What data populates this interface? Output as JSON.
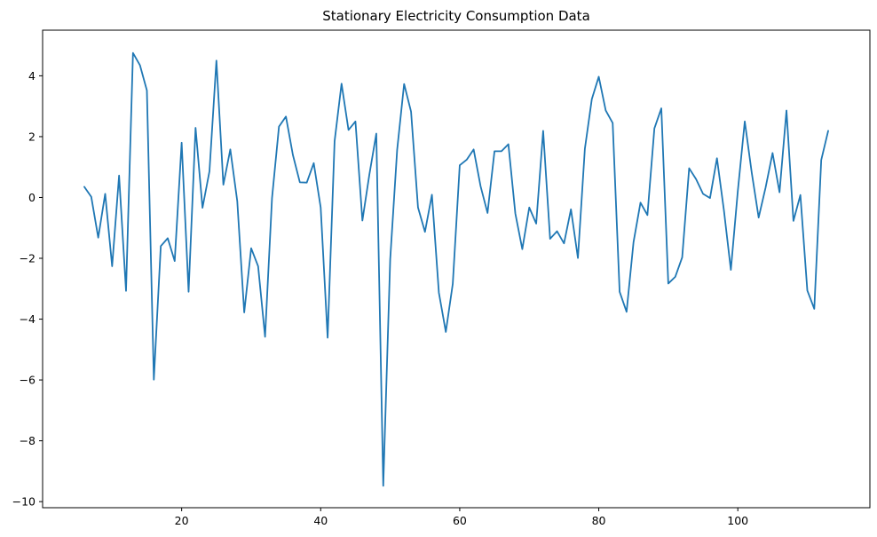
{
  "chart_data": {
    "type": "line",
    "title": "Stationary Electricity Consumption Data",
    "xlabel": "",
    "ylabel": "",
    "xlim": [
      -0.0,
      119.0
    ],
    "ylim": [
      -10.2,
      5.5
    ],
    "x_ticks": [
      20,
      40,
      60,
      80,
      100
    ],
    "x_tick_labels": [
      "20",
      "40",
      "60",
      "80",
      "100"
    ],
    "y_ticks": [
      -10,
      -8,
      -6,
      -4,
      -2,
      0,
      2,
      4
    ],
    "y_tick_labels": [
      "−10",
      "−8",
      "−6",
      "−4",
      "−2",
      "0",
      "2",
      "4"
    ],
    "grid": false,
    "colors": {
      "line": "#1f77b4"
    },
    "series": [
      {
        "x": [
          6,
          7,
          8,
          9,
          10,
          11,
          12,
          13,
          14,
          15,
          16,
          17,
          18,
          19,
          20,
          21,
          22,
          23,
          24,
          25,
          26,
          27,
          28,
          29,
          30,
          31,
          32,
          33,
          34,
          35,
          36,
          37,
          38,
          39,
          40,
          41,
          42,
          43,
          44,
          45,
          46,
          47,
          48,
          49,
          50,
          51,
          52,
          53,
          54,
          55,
          56,
          57,
          58,
          59,
          60,
          61,
          62,
          63,
          64,
          65,
          66,
          67,
          68,
          69,
          70,
          71,
          72,
          73,
          74,
          75,
          76,
          77,
          78,
          79,
          80,
          81,
          82,
          83,
          84,
          85,
          86,
          87,
          88,
          89,
          90,
          91,
          92,
          93,
          94,
          95,
          96,
          97,
          98,
          99,
          100,
          101,
          102,
          103,
          104,
          105,
          106,
          107,
          108,
          109,
          110,
          111,
          112,
          113
        ],
        "values": [
          0.35,
          0.02,
          -1.32,
          0.12,
          -2.26,
          0.72,
          -3.07,
          4.75,
          4.35,
          3.52,
          -5.99,
          -1.6,
          -1.34,
          -2.09,
          1.8,
          -3.1,
          2.29,
          -0.34,
          0.86,
          4.5,
          0.42,
          1.58,
          -0.12,
          -3.78,
          -1.67,
          -2.26,
          -4.58,
          -0.02,
          2.33,
          2.66,
          1.4,
          0.5,
          0.49,
          1.13,
          -0.33,
          -4.61,
          1.85,
          3.74,
          2.22,
          2.5,
          -0.76,
          0.75,
          2.1,
          -9.48,
          -2.03,
          1.57,
          3.73,
          2.82,
          -0.33,
          -1.13,
          0.09,
          -3.13,
          -4.42,
          -2.84,
          1.06,
          1.24,
          1.58,
          0.37,
          -0.51,
          1.52,
          1.52,
          1.75,
          -0.53,
          -1.7,
          -0.33,
          -0.86,
          2.19,
          -1.36,
          -1.11,
          -1.51,
          -0.39,
          -1.99,
          1.6,
          3.23,
          3.97,
          2.86,
          2.45,
          -3.1,
          -3.76,
          -1.47,
          -0.17,
          -0.58,
          2.27,
          2.93,
          -2.83,
          -2.61,
          -1.97,
          0.96,
          0.6,
          0.12,
          -0.02,
          1.29,
          -0.42,
          -2.38,
          0.21,
          2.5,
          0.82,
          -0.66,
          0.33,
          1.46,
          0.17,
          2.86,
          -0.77,
          0.08,
          -3.06,
          -3.66,
          1.23,
          2.19
        ]
      }
    ]
  }
}
